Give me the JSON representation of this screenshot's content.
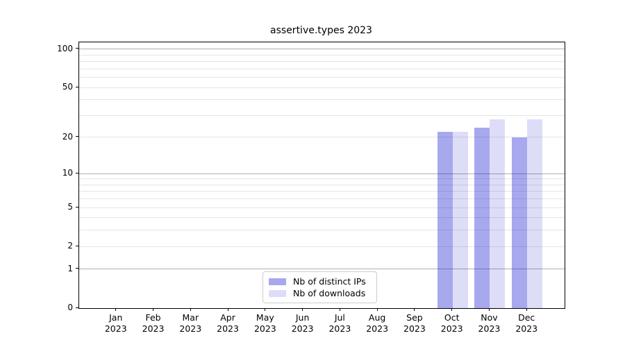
{
  "chart_data": {
    "type": "bar",
    "title": "assertive.types 2023",
    "categories": [
      "Jan 2023",
      "Feb 2023",
      "Mar 2023",
      "Apr 2023",
      "May 2023",
      "Jun 2023",
      "Jul 2023",
      "Aug 2023",
      "Sep 2023",
      "Oct 2023",
      "Nov 2023",
      "Dec 2023"
    ],
    "series": [
      {
        "name": "Nb of distinct IPs",
        "color": "rgba(0,0,205,0.34)",
        "values": [
          0,
          0,
          0,
          0,
          0,
          0,
          0,
          0,
          0,
          22,
          24,
          20
        ]
      },
      {
        "name": "Nb of downloads",
        "color": "rgba(0,0,205,0.135)",
        "values": [
          0,
          0,
          0,
          0,
          0,
          0,
          0,
          0,
          0,
          22,
          28,
          28
        ]
      }
    ],
    "yscale": "log1p",
    "ylim": [
      0,
      113
    ],
    "ytick_labels": [
      0,
      1,
      2,
      5,
      10,
      20,
      50,
      100
    ],
    "y_major_gridlines": [
      1,
      10,
      100
    ],
    "y_minor_gridlines": [
      2,
      3,
      4,
      5,
      6,
      7,
      8,
      9,
      20,
      30,
      40,
      50,
      60,
      70,
      80,
      90
    ],
    "grid_major_color": "#b0b0b0",
    "grid_minor_color": "#e5e5e5",
    "axis_color": "#000000",
    "legend_position": "lower center",
    "legend_border_color": "#cccccc",
    "xlabel": "",
    "ylabel": ""
  }
}
